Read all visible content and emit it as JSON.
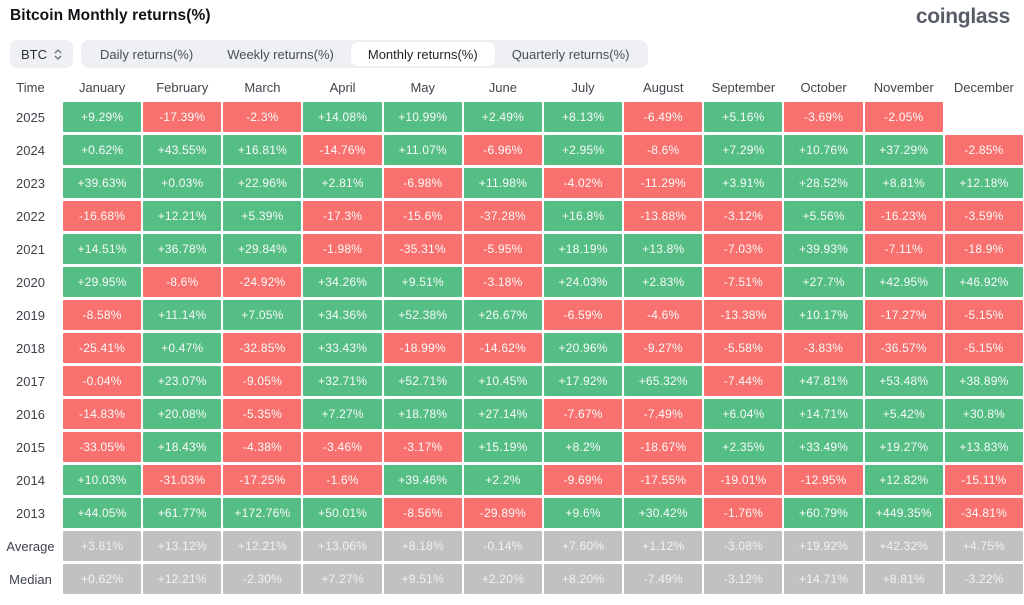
{
  "header": {
    "title": "Bitcoin Monthly returns(%)",
    "logo": "coinglass"
  },
  "controls": {
    "coin_selector": {
      "value": "BTC"
    },
    "tabs": [
      {
        "label": "Daily returns(%)",
        "active": false
      },
      {
        "label": "Weekly returns(%)",
        "active": false
      },
      {
        "label": "Monthly returns(%)",
        "active": true
      },
      {
        "label": "Quarterly returns(%)",
        "active": false
      }
    ]
  },
  "colors": {
    "positive": "#54be84",
    "negative": "#f8716e",
    "summary": "#c1c1c1",
    "tab_bg": "#eef0f3"
  },
  "chart_data": {
    "type": "table",
    "title": "Bitcoin Monthly returns(%)",
    "legend": "green = positive month, red = negative month, gray = summary rows",
    "columns": [
      "Time",
      "January",
      "February",
      "March",
      "April",
      "May",
      "June",
      "July",
      "August",
      "September",
      "October",
      "November",
      "December"
    ],
    "rows": [
      {
        "label": "2025",
        "summary": false,
        "values": [
          "+9.29%",
          "-17.39%",
          "-2.3%",
          "+14.08%",
          "+10.99%",
          "+2.49%",
          "+8.13%",
          "-6.49%",
          "+5.16%",
          "-3.69%",
          "-2.05%",
          ""
        ]
      },
      {
        "label": "2024",
        "summary": false,
        "values": [
          "+0.62%",
          "+43.55%",
          "+16.81%",
          "-14.76%",
          "+11.07%",
          "-6.96%",
          "+2.95%",
          "-8.6%",
          "+7.29%",
          "+10.76%",
          "+37.29%",
          "-2.85%"
        ]
      },
      {
        "label": "2023",
        "summary": false,
        "values": [
          "+39.63%",
          "+0.03%",
          "+22.96%",
          "+2.81%",
          "-6.98%",
          "+11.98%",
          "-4.02%",
          "-11.29%",
          "+3.91%",
          "+28.52%",
          "+8.81%",
          "+12.18%"
        ]
      },
      {
        "label": "2022",
        "summary": false,
        "values": [
          "-16.68%",
          "+12.21%",
          "+5.39%",
          "-17.3%",
          "-15.6%",
          "-37.28%",
          "+16.8%",
          "-13.88%",
          "-3.12%",
          "+5.56%",
          "-16.23%",
          "-3.59%"
        ]
      },
      {
        "label": "2021",
        "summary": false,
        "values": [
          "+14.51%",
          "+36.78%",
          "+29.84%",
          "-1.98%",
          "-35.31%",
          "-5.95%",
          "+18.19%",
          "+13.8%",
          "-7.03%",
          "+39.93%",
          "-7.11%",
          "-18.9%"
        ]
      },
      {
        "label": "2020",
        "summary": false,
        "values": [
          "+29.95%",
          "-8.6%",
          "-24.92%",
          "+34.26%",
          "+9.51%",
          "-3.18%",
          "+24.03%",
          "+2.83%",
          "-7.51%",
          "+27.7%",
          "+42.95%",
          "+46.92%"
        ]
      },
      {
        "label": "2019",
        "summary": false,
        "values": [
          "-8.58%",
          "+11.14%",
          "+7.05%",
          "+34.36%",
          "+52.38%",
          "+26.67%",
          "-6.59%",
          "-4.6%",
          "-13.38%",
          "+10.17%",
          "-17.27%",
          "-5.15%"
        ]
      },
      {
        "label": "2018",
        "summary": false,
        "values": [
          "-25.41%",
          "+0.47%",
          "-32.85%",
          "+33.43%",
          "-18.99%",
          "-14.62%",
          "+20.96%",
          "-9.27%",
          "-5.58%",
          "-3.83%",
          "-36.57%",
          "-5.15%"
        ]
      },
      {
        "label": "2017",
        "summary": false,
        "values": [
          "-0.04%",
          "+23.07%",
          "-9.05%",
          "+32.71%",
          "+52.71%",
          "+10.45%",
          "+17.92%",
          "+65.32%",
          "-7.44%",
          "+47.81%",
          "+53.48%",
          "+38.89%"
        ]
      },
      {
        "label": "2016",
        "summary": false,
        "values": [
          "-14.83%",
          "+20.08%",
          "-5.35%",
          "+7.27%",
          "+18.78%",
          "+27.14%",
          "-7.67%",
          "-7.49%",
          "+6.04%",
          "+14.71%",
          "+5.42%",
          "+30.8%"
        ]
      },
      {
        "label": "2015",
        "summary": false,
        "values": [
          "-33.05%",
          "+18.43%",
          "-4.38%",
          "-3.46%",
          "-3.17%",
          "+15.19%",
          "+8.2%",
          "-18.67%",
          "+2.35%",
          "+33.49%",
          "+19.27%",
          "+13.83%"
        ]
      },
      {
        "label": "2014",
        "summary": false,
        "values": [
          "+10.03%",
          "-31.03%",
          "-17.25%",
          "-1.6%",
          "+39.46%",
          "+2.2%",
          "-9.69%",
          "-17.55%",
          "-19.01%",
          "-12.95%",
          "+12.82%",
          "-15.11%"
        ]
      },
      {
        "label": "2013",
        "summary": false,
        "values": [
          "+44.05%",
          "+61.77%",
          "+172.76%",
          "+50.01%",
          "-8.56%",
          "-29.89%",
          "+9.6%",
          "+30.42%",
          "-1.76%",
          "+60.79%",
          "+449.35%",
          "-34.81%"
        ]
      },
      {
        "label": "Average",
        "summary": true,
        "values": [
          "+3.81%",
          "+13.12%",
          "+12.21%",
          "+13.06%",
          "+8.18%",
          "-0.14%",
          "+7.60%",
          "+1.12%",
          "-3.08%",
          "+19.92%",
          "+42.32%",
          "+4.75%"
        ]
      },
      {
        "label": "Median",
        "summary": true,
        "values": [
          "+0.62%",
          "+12.21%",
          "-2.30%",
          "+7.27%",
          "+9.51%",
          "+2.20%",
          "+8.20%",
          "-7.49%",
          "-3.12%",
          "+14.71%",
          "+8.81%",
          "-3.22%"
        ]
      }
    ]
  }
}
